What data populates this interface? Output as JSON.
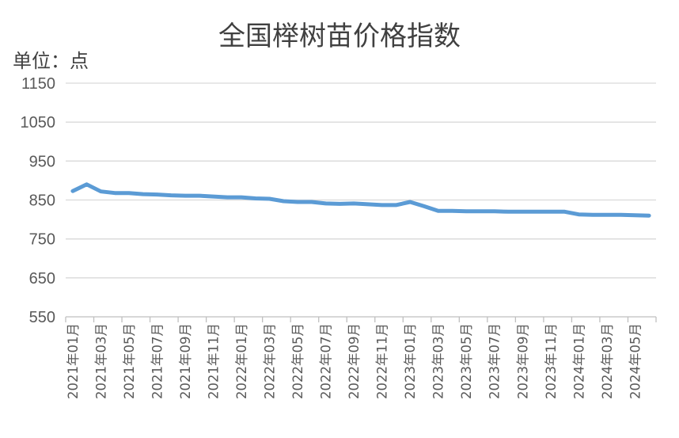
{
  "chart_data": {
    "type": "line",
    "title": "全国榉树苗价格指数",
    "unit_label": "单位：点",
    "ylim": [
      550,
      1150
    ],
    "yticks": [
      550,
      650,
      750,
      850,
      950,
      1050,
      1150
    ],
    "grid": true,
    "x": [
      "2021年01月",
      "2021年02月",
      "2021年03月",
      "2021年04月",
      "2021年05月",
      "2021年06月",
      "2021年07月",
      "2021年08月",
      "2021年09月",
      "2021年10月",
      "2021年11月",
      "2021年12月",
      "2022年01月",
      "2022年02月",
      "2022年03月",
      "2022年04月",
      "2022年05月",
      "2022年06月",
      "2022年07月",
      "2022年08月",
      "2022年09月",
      "2022年10月",
      "2022年11月",
      "2022年12月",
      "2023年01月",
      "2023年02月",
      "2023年03月",
      "2023年04月",
      "2023年05月",
      "2023年06月",
      "2023年07月",
      "2023年08月",
      "2023年09月",
      "2023年10月",
      "2023年11月",
      "2023年12月",
      "2024年01月",
      "2024年02月",
      "2024年03月",
      "2024年04月",
      "2024年05月",
      "2024年06月"
    ],
    "x_tick_labels": [
      "2021年01月",
      "2021年03月",
      "2021年05月",
      "2021年07月",
      "2021年09月",
      "2021年11月",
      "2022年01月",
      "2022年03月",
      "2022年05月",
      "2022年07月",
      "2022年09月",
      "2022年11月",
      "2023年01月",
      "2023年03月",
      "2023年05月",
      "2023年07月",
      "2023年09月",
      "2023年11月",
      "2024年01月",
      "2024年03月",
      "2024年05月"
    ],
    "series": [
      {
        "color": "#5B9BD5",
        "values": [
          873,
          890,
          872,
          868,
          868,
          865,
          864,
          862,
          861,
          861,
          859,
          857,
          857,
          854,
          853,
          847,
          845,
          845,
          841,
          840,
          841,
          839,
          837,
          837,
          845,
          834,
          822,
          822,
          821,
          821,
          821,
          820,
          820,
          820,
          820,
          820,
          813,
          812,
          812,
          812,
          811,
          810
        ]
      }
    ]
  }
}
